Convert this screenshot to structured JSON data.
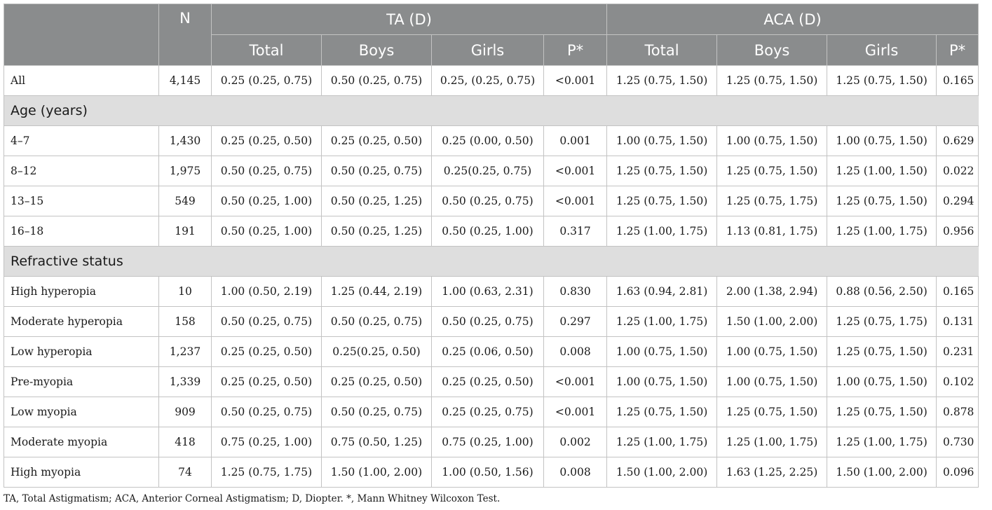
{
  "table": {
    "header": {
      "n": "N",
      "group_ta": "TA (D)",
      "group_aca": "ACA (D)",
      "subcols": [
        "Total",
        "Boys",
        "Girls",
        "P*",
        "Total",
        "Boys",
        "Girls",
        "P*"
      ]
    },
    "rows": [
      {
        "type": "data",
        "label": "All",
        "cells": [
          "4,145",
          "0.25 (0.25, 0.75)",
          "0.50 (0.25, 0.75)",
          "0.25, (0.25, 0.75)",
          "<0.001",
          "1.25 (0.75, 1.50)",
          "1.25 (0.75, 1.50)",
          "1.25 (0.75, 1.50)",
          "0.165"
        ]
      },
      {
        "type": "section",
        "label": "Age (years)"
      },
      {
        "type": "data",
        "label": "4–7",
        "cells": [
          "1,430",
          "0.25 (0.25, 0.50)",
          "0.25 (0.25, 0.50)",
          "0.25 (0.00, 0.50)",
          "0.001",
          "1.00 (0.75, 1.50)",
          "1.00 (0.75, 1.50)",
          "1.00 (0.75, 1.50)",
          "0.629"
        ]
      },
      {
        "type": "data",
        "label": "8–12",
        "cells": [
          "1,975",
          "0.50 (0.25, 0.75)",
          "0.50 (0.25, 0.75)",
          "0.25(0.25, 0.75)",
          "<0.001",
          "1.25 (0.75, 1.50)",
          "1.25 (0.75, 1.50)",
          "1.25 (1.00, 1.50)",
          "0.022"
        ]
      },
      {
        "type": "data",
        "label": "13–15",
        "cells": [
          "549",
          "0.50 (0.25, 1.00)",
          "0.50 (0.25, 1.25)",
          "0.50 (0.25, 0.75)",
          "<0.001",
          "1.25 (0.75, 1.50)",
          "1.25 (0.75, 1.75)",
          "1.25 (0.75, 1.50)",
          "0.294"
        ]
      },
      {
        "type": "data",
        "label": "16–18",
        "cells": [
          "191",
          "0.50 (0.25, 1.00)",
          "0.50 (0.25, 1.25)",
          "0.50 (0.25, 1.00)",
          "0.317",
          "1.25 (1.00, 1.75)",
          "1.13 (0.81, 1.75)",
          "1.25 (1.00, 1.75)",
          "0.956"
        ]
      },
      {
        "type": "section",
        "label": "Refractive status"
      },
      {
        "type": "data",
        "label": "High hyperopia",
        "cells": [
          "10",
          "1.00 (0.50, 2.19)",
          "1.25 (0.44, 2.19)",
          "1.00 (0.63, 2.31)",
          "0.830",
          "1.63 (0.94, 2.81)",
          "2.00 (1.38, 2.94)",
          "0.88 (0.56, 2.50)",
          "0.165"
        ]
      },
      {
        "type": "data",
        "label": "Moderate hyperopia",
        "cells": [
          "158",
          "0.50 (0.25, 0.75)",
          "0.50 (0.25, 0.75)",
          "0.50 (0.25, 0.75)",
          "0.297",
          "1.25 (1.00, 1.75)",
          "1.50 (1.00, 2.00)",
          "1.25 (0.75, 1.75)",
          "0.131"
        ]
      },
      {
        "type": "data",
        "label": "Low hyperopia",
        "cells": [
          "1,237",
          "0.25 (0.25, 0.50)",
          "0.25(0.25, 0.50)",
          "0.25 (0.06, 0.50)",
          "0.008",
          "1.00 (0.75, 1.50)",
          "1.00 (0.75, 1.50)",
          "1.25 (0.75, 1.50)",
          "0.231"
        ]
      },
      {
        "type": "data",
        "label": "Pre-myopia",
        "cells": [
          "1,339",
          "0.25 (0.25, 0.50)",
          "0.25 (0.25, 0.50)",
          "0.25 (0.25, 0.50)",
          "<0.001",
          "1.00 (0.75, 1.50)",
          "1.00 (0.75, 1.50)",
          "1.00 (0.75, 1.50)",
          "0.102"
        ]
      },
      {
        "type": "data",
        "label": "Low myopia",
        "cells": [
          "909",
          "0.50 (0.25, 0.75)",
          "0.50 (0.25, 0.75)",
          "0.25 (0.25, 0.75)",
          "<0.001",
          "1.25 (0.75, 1.50)",
          "1.25 (0.75, 1.50)",
          "1.25 (0.75, 1.50)",
          "0.878"
        ]
      },
      {
        "type": "data",
        "label": "Moderate myopia",
        "cells": [
          "418",
          "0.75 (0.25, 1.00)",
          "0.75 (0.50, 1.25)",
          "0.75 (0.25, 1.00)",
          "0.002",
          "1.25 (1.00, 1.75)",
          "1.25 (1.00, 1.75)",
          "1.25 (1.00, 1.75)",
          "0.730"
        ]
      },
      {
        "type": "data",
        "label": "High myopia",
        "cells": [
          "74",
          "1.25 (0.75, 1.75)",
          "1.50 (1.00, 2.00)",
          "1.00 (0.50, 1.56)",
          "0.008",
          "1.50 (1.00, 2.00)",
          "1.63 (1.25, 2.25)",
          "1.50 (1.00, 2.00)",
          "0.096"
        ]
      }
    ]
  },
  "footnote": "TA, Total Astigmatism; ACA, Anterior Corneal Astigmatism; D, Diopter. *, Mann Whitney Wilcoxon Test.",
  "colors": {
    "header_bg": "#8a8c8d",
    "header_text": "#ffffff",
    "section_bg": "#dedede",
    "grid_line": "#c3c3c3"
  }
}
